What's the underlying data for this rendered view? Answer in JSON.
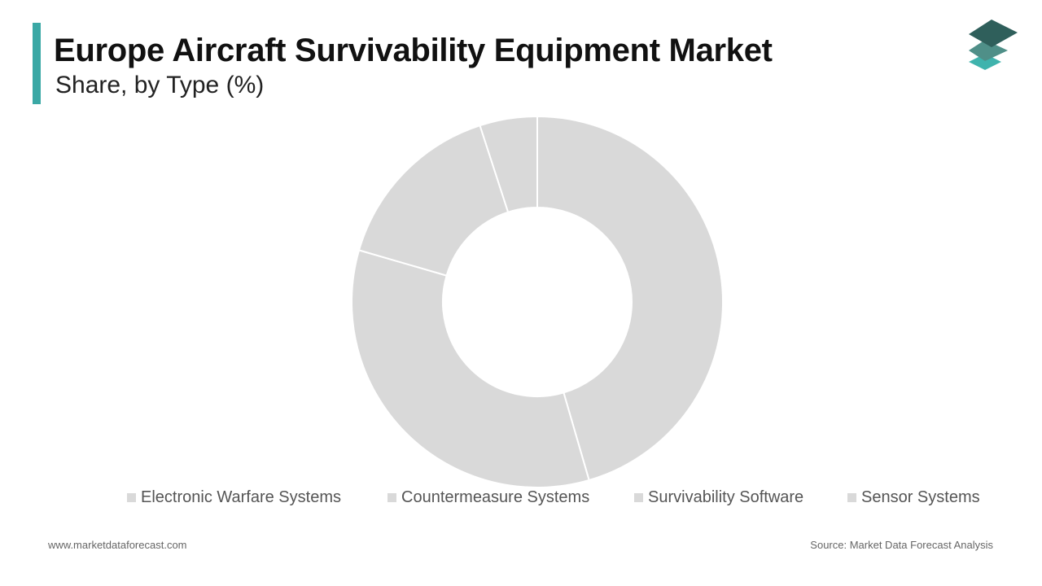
{
  "header": {
    "title": "Europe Aircraft Survivability Equipment Market",
    "subtitle": "Share, by Type (%)"
  },
  "footer": {
    "website": "www.marketdataforecast.com",
    "source": "Source: Market Data Forecast Analysis"
  },
  "colors": {
    "accent": "#3aa8a5",
    "slice": "#d9d9d9",
    "separator": "#ffffff",
    "legend_swatch": "#d9d9d9",
    "logo_top": "#2f5f5b",
    "logo_mid": "#4f8f88",
    "logo_bottom": "#3fb3ad"
  },
  "logo": {
    "icon": "stacked-layers-icon"
  },
  "chart_data": {
    "type": "pie",
    "variant": "donut",
    "categories": [
      "Electronic Warfare Systems",
      "Countermeasure Systems",
      "Survivability Software",
      "Sensor Systems"
    ],
    "values": [
      45.5,
      34.0,
      15.5,
      5.0
    ],
    "data_labels": false,
    "legend_position": "bottom"
  }
}
